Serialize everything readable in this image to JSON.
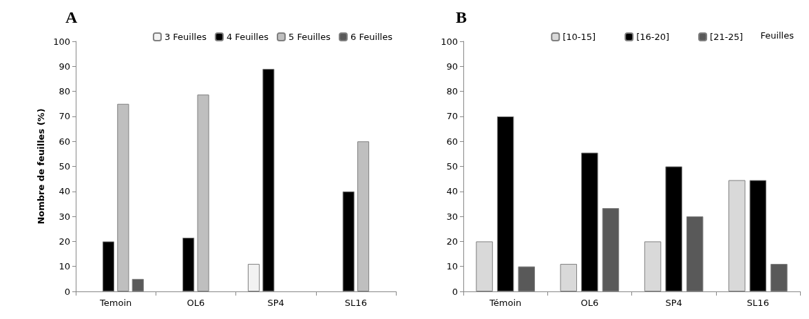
{
  "chart_data": [
    {
      "type": "bar",
      "title": "A",
      "ylabel": "Nombre de feuilles (%)",
      "categories": [
        "Temoin",
        "OL6",
        "SP4",
        "SL16"
      ],
      "series": [
        {
          "name": "3 Feuilles",
          "color": "#f2f2f2",
          "values": [
            null,
            null,
            11,
            null
          ]
        },
        {
          "name": "4 Feuilles",
          "color": "#000000",
          "values": [
            20,
            21.5,
            89,
            40
          ]
        },
        {
          "name": "5 Feuilles",
          "color": "#bfbfbf",
          "values": [
            75,
            78.7,
            null,
            60
          ]
        },
        {
          "name": "6 Feuilles",
          "color": "#595959",
          "values": [
            5,
            null,
            null,
            null
          ]
        }
      ],
      "ylim": [
        0,
        100
      ],
      "yticks": [
        0,
        10,
        20,
        30,
        40,
        50,
        60,
        70,
        80,
        90,
        100
      ],
      "grid": false,
      "legend": "top right"
    },
    {
      "type": "bar",
      "title": "B",
      "legend_title": "Feuilles",
      "categories": [
        "Témoin",
        "OL6",
        "SP4",
        "SL16"
      ],
      "series": [
        {
          "name": "[10-15]",
          "color": "#d9d9d9",
          "values": [
            20,
            11,
            20,
            44.5
          ]
        },
        {
          "name": "[16-20]",
          "color": "#000000",
          "values": [
            70,
            55.5,
            50,
            44.5
          ]
        },
        {
          "name": "[21-25]",
          "color": "#595959",
          "values": [
            10,
            33.3,
            30,
            11
          ]
        }
      ],
      "ylim": [
        0,
        100
      ],
      "yticks": [
        0,
        10,
        20,
        30,
        40,
        50,
        60,
        70,
        80,
        90,
        100
      ],
      "grid": false,
      "legend": "top right"
    }
  ]
}
